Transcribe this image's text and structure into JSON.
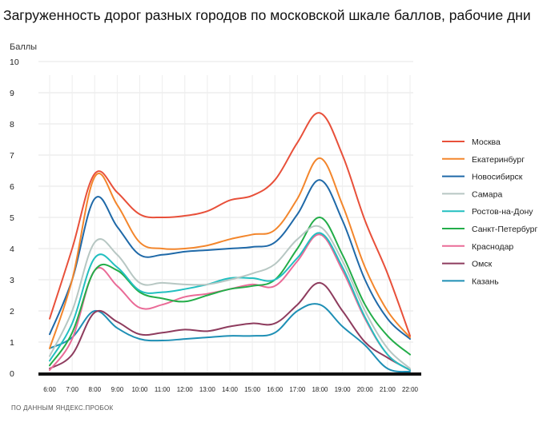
{
  "chart_data": {
    "type": "line",
    "title": "Загруженность дорог разных городов по московской шкале баллов, рабочие дни",
    "ylabel": "Баллы",
    "xlabel": "",
    "source": "ПО ДАННЫМ ЯНДЕКС.ПРОБОК",
    "ylim": [
      0,
      10
    ],
    "yticks": [
      "0",
      "1",
      "2",
      "3",
      "4",
      "5",
      "6",
      "7",
      "8",
      "9",
      "10"
    ],
    "grid": true,
    "legend_position": "right",
    "x": [
      "6:00",
      "7:00",
      "8:00",
      "9:00",
      "10:00",
      "11:00",
      "12:00",
      "13:00",
      "14:00",
      "15:00",
      "16:00",
      "17:00",
      "18:00",
      "19:00",
      "20:00",
      "21:00",
      "22:00"
    ],
    "series": [
      {
        "name": "Москва",
        "color": "#e8503a",
        "values": [
          1.75,
          4.0,
          6.4,
          5.8,
          5.1,
          5.0,
          5.05,
          5.2,
          5.55,
          5.7,
          6.2,
          7.4,
          8.35,
          7.0,
          4.9,
          3.2,
          1.2
        ]
      },
      {
        "name": "Екатеринбург",
        "color": "#f3862c",
        "values": [
          0.8,
          3.0,
          6.3,
          5.4,
          4.2,
          4.0,
          4.0,
          4.1,
          4.3,
          4.45,
          4.6,
          5.6,
          6.9,
          5.4,
          3.4,
          2.0,
          1.15
        ]
      },
      {
        "name": "Новосибирск",
        "color": "#1f69a8",
        "values": [
          1.25,
          3.0,
          5.6,
          4.7,
          3.8,
          3.8,
          3.9,
          3.95,
          4.0,
          4.05,
          4.2,
          5.1,
          6.2,
          4.9,
          3.0,
          1.75,
          1.1
        ]
      },
      {
        "name": "Самара",
        "color": "#b7c7c3",
        "values": [
          0.55,
          2.0,
          4.2,
          3.8,
          2.9,
          2.9,
          2.85,
          2.85,
          3.0,
          3.2,
          3.5,
          4.3,
          4.7,
          3.6,
          2.0,
          0.8,
          0.15
        ]
      },
      {
        "name": "Ростов-на-Дону",
        "color": "#22bfc0",
        "values": [
          0.4,
          1.6,
          3.7,
          3.4,
          2.65,
          2.6,
          2.7,
          2.85,
          3.05,
          3.05,
          3.0,
          3.7,
          4.5,
          3.4,
          1.8,
          0.6,
          0.1
        ]
      },
      {
        "name": "Санкт-Петербург",
        "color": "#23ad49",
        "values": [
          0.25,
          1.3,
          3.3,
          3.3,
          2.6,
          2.4,
          2.3,
          2.5,
          2.7,
          2.8,
          3.0,
          4.0,
          5.0,
          3.8,
          2.2,
          1.2,
          0.6
        ]
      },
      {
        "name": "Краснодар",
        "color": "#ea6b97",
        "values": [
          0.1,
          1.1,
          3.3,
          2.8,
          2.1,
          2.2,
          2.45,
          2.55,
          2.7,
          2.85,
          2.8,
          3.6,
          4.45,
          3.3,
          1.75,
          0.6,
          0.1
        ]
      },
      {
        "name": "Омск",
        "color": "#8e3c5e",
        "values": [
          0.15,
          0.6,
          1.95,
          1.65,
          1.25,
          1.3,
          1.4,
          1.35,
          1.5,
          1.6,
          1.6,
          2.2,
          2.9,
          2.0,
          1.0,
          0.5,
          0.1
        ]
      },
      {
        "name": "Казань",
        "color": "#1e8fb5",
        "values": [
          0.8,
          1.15,
          2.0,
          1.45,
          1.1,
          1.05,
          1.1,
          1.15,
          1.2,
          1.2,
          1.3,
          2.0,
          2.2,
          1.5,
          0.9,
          0.15,
          0.05
        ]
      }
    ]
  }
}
